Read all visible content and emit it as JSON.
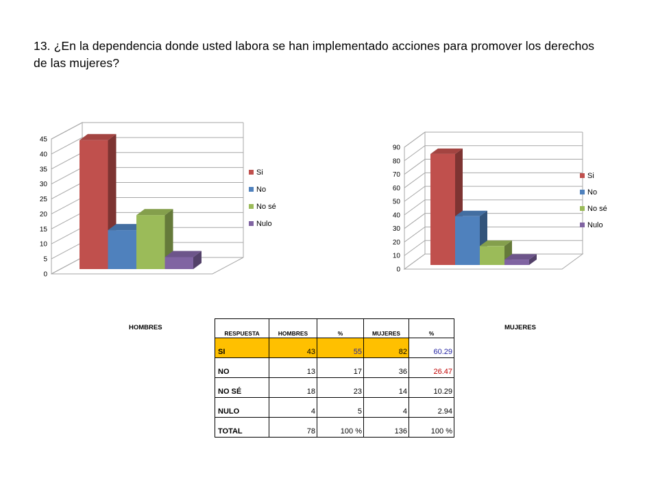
{
  "question": "13. ¿En la dependencia donde usted labora se han implementado acciones para promover los derechos de las mujeres?",
  "labels": {
    "hombres": "HOMBRES",
    "mujeres": "MUJERES"
  },
  "chart_data": [
    {
      "type": "bar",
      "title": "",
      "categories": [
        "Si",
        "No",
        "No sé",
        "Nulo"
      ],
      "values": [
        43,
        13,
        18,
        4
      ],
      "colors": [
        "#c0504d",
        "#4f81bd",
        "#9bbb59",
        "#8064a2"
      ],
      "yticks": [
        0,
        5,
        10,
        15,
        20,
        25,
        30,
        35,
        40,
        45
      ],
      "ylim": [
        0,
        45
      ],
      "grid": true,
      "legend": "right",
      "style": "3d"
    },
    {
      "type": "bar",
      "title": "",
      "categories": [
        "Si",
        "No",
        "No sé",
        "Nulo"
      ],
      "values": [
        82,
        36,
        14,
        4
      ],
      "colors": [
        "#c0504d",
        "#4f81bd",
        "#9bbb59",
        "#8064a2"
      ],
      "yticks": [
        0,
        10,
        20,
        30,
        40,
        50,
        60,
        70,
        80,
        90
      ],
      "ylim": [
        0,
        90
      ],
      "grid": true,
      "legend": "right",
      "style": "3d"
    }
  ],
  "table": {
    "headers": [
      "RESPUESTA",
      "HOMBRES",
      "%",
      "MUJERES",
      "%"
    ],
    "rows": [
      {
        "label": "SI",
        "hombres": "43",
        "pct_h": "55",
        "mujeres": "82",
        "pct_m": "60.29"
      },
      {
        "label": "NO",
        "hombres": "13",
        "pct_h": "17",
        "mujeres": "36",
        "pct_m": "26.47"
      },
      {
        "label": "NO SÉ",
        "hombres": "18",
        "pct_h": "23",
        "mujeres": "14",
        "pct_m": "10.29"
      },
      {
        "label": "NULO",
        "hombres": "4",
        "pct_h": "5",
        "mujeres": "4",
        "pct_m": "2.94"
      },
      {
        "label": "TOTAL",
        "hombres": "78",
        "pct_h": "100 %",
        "mujeres": "136",
        "pct_m": "100 %"
      }
    ],
    "colors": {
      "highlight": "#ffc000",
      "blue_text": "#1f1fa0",
      "red_text": "#c00000"
    }
  }
}
